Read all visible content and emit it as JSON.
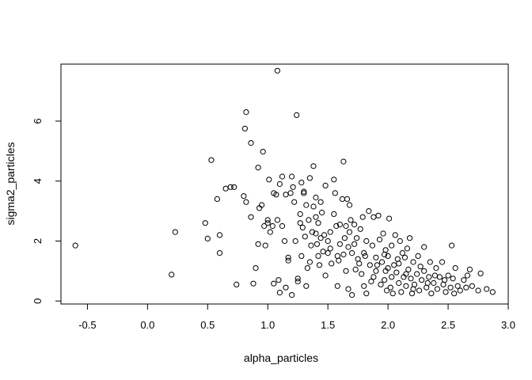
{
  "chart_data": {
    "type": "scatter",
    "title": "",
    "xlabel": "alpha_particles",
    "ylabel": "sigma2_particles",
    "xlim": [
      -0.72,
      3.0
    ],
    "ylim": [
      -0.1,
      7.9
    ],
    "xticks": [
      -0.5,
      0.0,
      0.5,
      1.0,
      1.5,
      2.0,
      2.5,
      3.0
    ],
    "xtick_labels": [
      "-0.5",
      "0.0",
      "0.5",
      "1.0",
      "1.5",
      "2.0",
      "2.5",
      "3.0"
    ],
    "yticks": [
      0,
      2,
      4,
      6
    ],
    "ytick_labels": [
      "0",
      "2",
      "4",
      "6"
    ],
    "grid": false,
    "marker": "open-circle",
    "marker_color": "#000000",
    "points": [
      [
        -0.6,
        1.85
      ],
      [
        0.2,
        0.88
      ],
      [
        0.23,
        2.3
      ],
      [
        0.48,
        2.6
      ],
      [
        0.5,
        2.08
      ],
      [
        0.53,
        4.7
      ],
      [
        0.58,
        3.4
      ],
      [
        0.6,
        2.2
      ],
      [
        0.6,
        1.6
      ],
      [
        0.65,
        3.75
      ],
      [
        0.69,
        3.8
      ],
      [
        0.72,
        3.8
      ],
      [
        0.74,
        0.55
      ],
      [
        0.8,
        3.5
      ],
      [
        0.82,
        3.3
      ],
      [
        0.82,
        6.3
      ],
      [
        0.81,
        5.75
      ],
      [
        0.86,
        5.27
      ],
      [
        0.86,
        2.8
      ],
      [
        0.88,
        0.58
      ],
      [
        0.9,
        1.1
      ],
      [
        0.92,
        1.9
      ],
      [
        0.92,
        4.45
      ],
      [
        0.93,
        3.1
      ],
      [
        0.95,
        3.2
      ],
      [
        0.96,
        4.98
      ],
      [
        0.97,
        2.5
      ],
      [
        0.98,
        1.85
      ],
      [
        1.0,
        2.7
      ],
      [
        1.0,
        2.6
      ],
      [
        1.01,
        4.05
      ],
      [
        1.02,
        2.3
      ],
      [
        1.04,
        2.5
      ],
      [
        1.05,
        3.6
      ],
      [
        1.05,
        0.58
      ],
      [
        1.07,
        3.55
      ],
      [
        1.08,
        7.68
      ],
      [
        1.08,
        2.7
      ],
      [
        1.09,
        0.7
      ],
      [
        1.1,
        0.28
      ],
      [
        1.1,
        3.9
      ],
      [
        1.12,
        2.5
      ],
      [
        1.12,
        4.15
      ],
      [
        1.14,
        2.0
      ],
      [
        1.15,
        0.45
      ],
      [
        1.15,
        3.55
      ],
      [
        1.17,
        1.45
      ],
      [
        1.17,
        1.35
      ],
      [
        1.19,
        3.6
      ],
      [
        1.2,
        4.15
      ],
      [
        1.2,
        0.2
      ],
      [
        1.21,
        3.8
      ],
      [
        1.22,
        3.3
      ],
      [
        1.23,
        2.0
      ],
      [
        1.24,
        6.2
      ],
      [
        1.25,
        0.75
      ],
      [
        1.25,
        0.65
      ],
      [
        1.27,
        2.6
      ],
      [
        1.27,
        2.9
      ],
      [
        1.28,
        3.95
      ],
      [
        1.28,
        1.5
      ],
      [
        1.3,
        3.6
      ],
      [
        1.3,
        3.65
      ],
      [
        1.31,
        2.15
      ],
      [
        1.32,
        3.2
      ],
      [
        1.32,
        0.5
      ],
      [
        1.33,
        1.1
      ],
      [
        1.34,
        2.7
      ],
      [
        1.35,
        4.1
      ],
      [
        1.35,
        1.3
      ],
      [
        1.37,
        2.3
      ],
      [
        1.38,
        3.15
      ],
      [
        1.38,
        4.5
      ],
      [
        1.4,
        3.45
      ],
      [
        1.4,
        2.8
      ],
      [
        1.4,
        2.25
      ],
      [
        1.41,
        1.9
      ],
      [
        1.42,
        1.5
      ],
      [
        1.42,
        2.6
      ],
      [
        1.43,
        1.2
      ],
      [
        1.44,
        3.3
      ],
      [
        1.45,
        2.95
      ],
      [
        1.46,
        1.65
      ],
      [
        1.48,
        3.85
      ],
      [
        1.48,
        0.85
      ],
      [
        1.5,
        1.6
      ],
      [
        1.5,
        2.0
      ],
      [
        1.52,
        2.3
      ],
      [
        1.53,
        1.25
      ],
      [
        1.55,
        2.9
      ],
      [
        1.55,
        4.05
      ],
      [
        1.56,
        3.6
      ],
      [
        1.57,
        2.5
      ],
      [
        1.58,
        1.5
      ],
      [
        1.58,
        0.5
      ],
      [
        1.6,
        2.55
      ],
      [
        1.6,
        1.9
      ],
      [
        1.62,
        3.4
      ],
      [
        1.63,
        4.65
      ],
      [
        1.63,
        1.55
      ],
      [
        1.64,
        2.1
      ],
      [
        1.65,
        2.5
      ],
      [
        1.65,
        1.0
      ],
      [
        1.66,
        3.4
      ],
      [
        1.67,
        0.4
      ],
      [
        1.68,
        2.3
      ],
      [
        1.68,
        3.2
      ],
      [
        1.69,
        2.7
      ],
      [
        1.7,
        1.6
      ],
      [
        1.7,
        0.2
      ],
      [
        1.72,
        1.9
      ],
      [
        1.72,
        2.55
      ],
      [
        1.74,
        2.1
      ],
      [
        1.75,
        1.4
      ],
      [
        1.76,
        1.25
      ],
      [
        1.77,
        2.4
      ],
      [
        1.78,
        0.9
      ],
      [
        1.79,
        2.8
      ],
      [
        1.8,
        1.6
      ],
      [
        1.8,
        0.5
      ],
      [
        1.82,
        0.25
      ],
      [
        1.82,
        2.0
      ],
      [
        1.84,
        3.0
      ],
      [
        1.85,
        1.2
      ],
      [
        1.87,
        1.85
      ],
      [
        1.88,
        2.8
      ],
      [
        1.88,
        0.8
      ],
      [
        1.9,
        1.45
      ],
      [
        1.9,
        1.0
      ],
      [
        1.92,
        2.85
      ],
      [
        1.93,
        2.05
      ],
      [
        1.94,
        0.55
      ],
      [
        1.95,
        1.3
      ],
      [
        1.96,
        2.25
      ],
      [
        1.97,
        0.7
      ],
      [
        1.98,
        1.0
      ],
      [
        1.98,
        1.7
      ],
      [
        1.99,
        0.35
      ],
      [
        2.0,
        1.5
      ],
      [
        2.0,
        1.1
      ],
      [
        2.01,
        2.75
      ],
      [
        2.02,
        0.45
      ],
      [
        2.03,
        1.85
      ],
      [
        2.04,
        0.25
      ],
      [
        2.05,
        1.2
      ],
      [
        2.06,
        2.2
      ],
      [
        2.07,
        0.95
      ],
      [
        2.08,
        1.4
      ],
      [
        2.09,
        0.6
      ],
      [
        2.1,
        2.0
      ],
      [
        2.11,
        0.3
      ],
      [
        2.12,
        1.6
      ],
      [
        2.13,
        0.8
      ],
      [
        2.14,
        1.45
      ],
      [
        2.15,
        0.5
      ],
      [
        2.16,
        1.75
      ],
      [
        2.17,
        1.05
      ],
      [
        2.18,
        2.1
      ],
      [
        2.19,
        0.75
      ],
      [
        2.2,
        0.25
      ],
      [
        2.21,
        1.3
      ],
      [
        2.22,
        0.55
      ],
      [
        2.24,
        0.9
      ],
      [
        2.25,
        1.5
      ],
      [
        2.26,
        0.35
      ],
      [
        2.28,
        0.7
      ],
      [
        2.3,
        1.8
      ],
      [
        2.3,
        1.0
      ],
      [
        2.32,
        0.45
      ],
      [
        2.34,
        0.8
      ],
      [
        2.35,
        1.3
      ],
      [
        2.36,
        0.25
      ],
      [
        2.38,
        0.6
      ],
      [
        2.4,
        1.1
      ],
      [
        2.41,
        0.4
      ],
      [
        2.43,
        0.8
      ],
      [
        2.45,
        1.3
      ],
      [
        2.46,
        0.55
      ],
      [
        2.48,
        0.3
      ],
      [
        2.5,
        0.85
      ],
      [
        2.52,
        0.45
      ],
      [
        2.53,
        1.85
      ],
      [
        2.54,
        0.75
      ],
      [
        2.55,
        0.25
      ],
      [
        2.56,
        1.1
      ],
      [
        2.58,
        0.5
      ],
      [
        2.6,
        0.35
      ],
      [
        2.63,
        0.7
      ],
      [
        2.65,
        0.45
      ],
      [
        2.66,
        0.85
      ],
      [
        2.68,
        1.05
      ],
      [
        2.7,
        0.5
      ],
      [
        2.75,
        0.35
      ],
      [
        2.77,
        0.92
      ],
      [
        2.82,
        0.4
      ],
      [
        2.87,
        0.3
      ],
      [
        1.36,
        1.85
      ],
      [
        1.44,
        2.1
      ],
      [
        1.52,
        1.75
      ],
      [
        1.59,
        1.35
      ],
      [
        1.67,
        1.8
      ],
      [
        1.73,
        1.05
      ],
      [
        1.81,
        1.5
      ],
      [
        1.86,
        0.65
      ],
      [
        1.91,
        1.2
      ],
      [
        1.97,
        1.55
      ],
      [
        2.03,
        0.8
      ],
      [
        2.09,
        1.25
      ],
      [
        2.15,
        0.9
      ],
      [
        2.21,
        0.4
      ],
      [
        2.27,
        1.15
      ],
      [
        2.33,
        0.6
      ],
      [
        2.39,
        0.85
      ],
      [
        2.47,
        0.7
      ],
      [
        1.29,
        2.45
      ],
      [
        1.47,
        2.2
      ]
    ]
  }
}
